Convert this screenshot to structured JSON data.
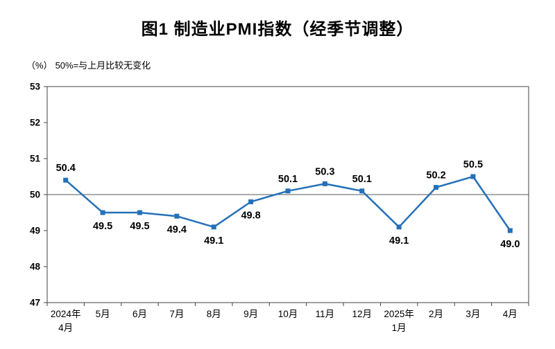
{
  "chart_data": {
    "type": "line",
    "title": "图1  制造业PMI指数（经季节调整）",
    "unit_label": "（%）",
    "note": "50%=与上月比较无变化",
    "categories": [
      "2024年4月",
      "5月",
      "6月",
      "7月",
      "8月",
      "9月",
      "10月",
      "11月",
      "12月",
      "2025年1月",
      "2月",
      "3月",
      "4月"
    ],
    "xtick_lines": [
      [
        "2024年",
        "4月"
      ],
      [
        "5月"
      ],
      [
        "6月"
      ],
      [
        "7月"
      ],
      [
        "8月"
      ],
      [
        "9月"
      ],
      [
        "10月"
      ],
      [
        "11月"
      ],
      [
        "12月"
      ],
      [
        "2025年",
        "1月"
      ],
      [
        "2月"
      ],
      [
        "3月"
      ],
      [
        "4月"
      ]
    ],
    "values": [
      50.4,
      49.5,
      49.5,
      49.4,
      49.1,
      49.8,
      50.1,
      50.3,
      50.1,
      49.1,
      50.2,
      50.5,
      49.0
    ],
    "ylim": [
      47,
      53
    ],
    "ytick_step": 1,
    "reference_line": 50,
    "grid": false,
    "legend": "none",
    "line_color": "#2470b8",
    "label_color": "#000000",
    "axis_color": "#404040"
  }
}
